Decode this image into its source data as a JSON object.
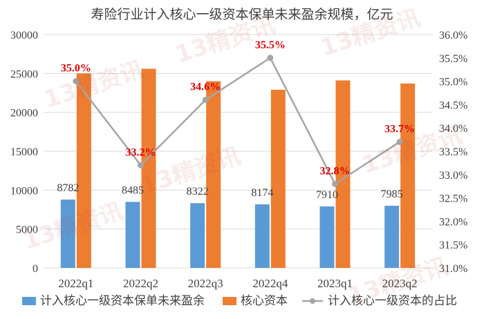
{
  "chart_data": {
    "type": "bar",
    "title": "寿险行业计入核心一级资本保单未来盈余规模，亿元",
    "categories": [
      "2022q1",
      "2022q2",
      "2022q3",
      "2022q4",
      "2023q1",
      "2023q2"
    ],
    "series": [
      {
        "name": "计入核心一级资本保单未来盈余",
        "type": "bar",
        "axis": "left",
        "color": "#5b9bd5",
        "values": [
          8782,
          8485,
          8322,
          8174,
          7910,
          7985
        ]
      },
      {
        "name": "核心资本",
        "type": "bar",
        "axis": "left",
        "color": "#ed7d31",
        "values": [
          25000,
          25600,
          24000,
          22900,
          24100,
          23700
        ]
      },
      {
        "name": "计入核心一级资本的占比",
        "type": "line",
        "axis": "right",
        "color": "#a5a5a5",
        "values": [
          35.0,
          33.2,
          34.6,
          35.5,
          32.8,
          33.7
        ]
      }
    ],
    "bar_labels": [
      "8782",
      "8485",
      "8322",
      "8174",
      "7910",
      "7985"
    ],
    "line_labels": [
      "35.0%",
      "33.2%",
      "34.6%",
      "35.5%",
      "32.8%",
      "33.7%"
    ],
    "label_color": "#e00000",
    "y_left": {
      "min": 0,
      "max": 30000,
      "step": 5000,
      "ticks": [
        "0",
        "5000",
        "10000",
        "15000",
        "20000",
        "25000",
        "30000"
      ]
    },
    "y_right": {
      "min": 31.0,
      "max": 36.0,
      "step": 0.5,
      "ticks": [
        "31.0%",
        "31.5%",
        "32.0%",
        "32.5%",
        "33.0%",
        "33.5%",
        "34.0%",
        "34.5%",
        "35.0%",
        "35.5%",
        "36.0%"
      ]
    },
    "grid": true,
    "legend_position": "bottom",
    "watermark": "13精资讯"
  }
}
